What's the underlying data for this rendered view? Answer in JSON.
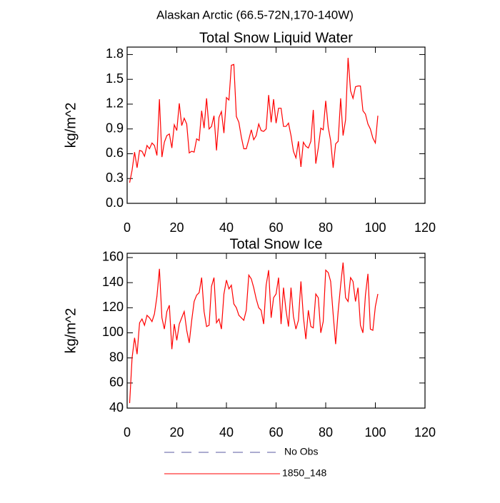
{
  "title": "Alaskan Arctic (66.5-72N,170-140W)",
  "legend": [
    {
      "name": "No Obs",
      "color": "#5a5aa0",
      "style": "dashed"
    },
    {
      "name": "1850_148",
      "color": "#ff0000",
      "style": "solid"
    }
  ],
  "chart_data": [
    {
      "type": "line",
      "title": "Total Snow Liquid Water",
      "y_label": "kg/m^2",
      "x": [
        1,
        2,
        3,
        4,
        5,
        6,
        7,
        8,
        9,
        10,
        11,
        12,
        13,
        14,
        15,
        16,
        17,
        18,
        19,
        20,
        21,
        22,
        23,
        24,
        25,
        26,
        27,
        28,
        29,
        30,
        31,
        32,
        33,
        34,
        35,
        36,
        37,
        38,
        39,
        40,
        41,
        42,
        43,
        44,
        45,
        46,
        47,
        48,
        49,
        50,
        51,
        52,
        53,
        54,
        55,
        56,
        57,
        58,
        59,
        60,
        61,
        62,
        63,
        64,
        65,
        66,
        67,
        68,
        69,
        70,
        71,
        72,
        73,
        74,
        75,
        76,
        77,
        78,
        79,
        80,
        81,
        82,
        83,
        84,
        85,
        86,
        87,
        88,
        89,
        90,
        91,
        92,
        93,
        94,
        95,
        96,
        97,
        98,
        99,
        100,
        101
      ],
      "series": [
        {
          "color": "#ff0000",
          "values": [
            0.25,
            0.4,
            0.62,
            0.43,
            0.64,
            0.63,
            0.57,
            0.7,
            0.66,
            0.73,
            0.7,
            0.58,
            1.26,
            0.56,
            0.74,
            0.82,
            0.84,
            0.67,
            0.95,
            0.88,
            1.21,
            0.94,
            1.03,
            0.96,
            0.61,
            0.63,
            0.62,
            0.78,
            0.76,
            1.12,
            0.91,
            1.27,
            0.9,
            0.93,
            1.06,
            0.64,
            1.04,
            1.11,
            0.85,
            1.28,
            1.25,
            1.67,
            1.68,
            1.05,
            0.98,
            0.8,
            0.66,
            0.66,
            0.77,
            0.89,
            0.77,
            0.82,
            0.96,
            0.88,
            0.87,
            0.9,
            1.31,
            0.98,
            1.26,
            0.97,
            1.15,
            1.15,
            0.93,
            0.93,
            0.97,
            0.82,
            0.63,
            0.55,
            0.75,
            0.44,
            0.74,
            0.69,
            0.67,
            0.75,
            1.13,
            0.48,
            0.67,
            0.91,
            0.89,
            1.24,
            0.92,
            0.76,
            0.43,
            0.72,
            0.75,
            1.27,
            0.82,
            1.01,
            1.76,
            1.36,
            1.27,
            1.41,
            1.42,
            1.42,
            1.12,
            1.08,
            0.96,
            0.9,
            0.79,
            0.73,
            1.06
          ]
        }
      ],
      "xlim": [
        0,
        120
      ],
      "xticks": [
        0,
        20,
        40,
        60,
        80,
        100,
        120
      ],
      "ylim": [
        0,
        1.89
      ],
      "yticks": [
        {
          "value": 0,
          "label": "0.0"
        },
        0.3,
        0.6,
        0.9,
        1.2,
        1.5,
        1.8
      ]
    },
    {
      "type": "line",
      "title": "Total Snow Ice",
      "y_label": "kg/m^2",
      "x": [
        1,
        2,
        3,
        4,
        5,
        6,
        7,
        8,
        9,
        10,
        11,
        12,
        13,
        14,
        15,
        16,
        17,
        18,
        19,
        20,
        21,
        22,
        23,
        24,
        25,
        26,
        27,
        28,
        29,
        30,
        31,
        32,
        33,
        34,
        35,
        36,
        37,
        38,
        39,
        40,
        41,
        42,
        43,
        44,
        45,
        46,
        47,
        48,
        49,
        50,
        51,
        52,
        53,
        54,
        55,
        56,
        57,
        58,
        59,
        60,
        61,
        62,
        63,
        64,
        65,
        66,
        67,
        68,
        69,
        70,
        71,
        72,
        73,
        74,
        75,
        76,
        77,
        78,
        79,
        80,
        81,
        82,
        83,
        84,
        85,
        86,
        87,
        88,
        89,
        90,
        91,
        92,
        93,
        94,
        95,
        96,
        97,
        98,
        99,
        100,
        101
      ],
      "series": [
        {
          "color": "#ff0000",
          "values": [
            44,
            80,
            96,
            83,
            108,
            111,
            106,
            114,
            112,
            109,
            115,
            129,
            151,
            112,
            103,
            117,
            122,
            87,
            107,
            94,
            107,
            112,
            117,
            102,
            92,
            110,
            125,
            130,
            132,
            144,
            117,
            105,
            106,
            137,
            144,
            108,
            111,
            103,
            131,
            142,
            135,
            138,
            123,
            120,
            114,
            112,
            110,
            118,
            146,
            143,
            136,
            127,
            120,
            118,
            107,
            138,
            150,
            112,
            128,
            131,
            144,
            107,
            136,
            118,
            105,
            136,
            113,
            103,
            110,
            141,
            113,
            95,
            118,
            105,
            104,
            131,
            128,
            100,
            109,
            150,
            148,
            141,
            115,
            91,
            117,
            138,
            156,
            128,
            125,
            144,
            141,
            125,
            136,
            106,
            100,
            130,
            147,
            103,
            102,
            121,
            131
          ]
        }
      ],
      "xlim": [
        0,
        120
      ],
      "xticks": [
        0,
        20,
        40,
        60,
        80,
        100,
        120
      ],
      "ylim": [
        40,
        163.4
      ],
      "yticks": [
        40,
        60,
        80,
        100,
        120,
        140,
        160
      ]
    }
  ]
}
